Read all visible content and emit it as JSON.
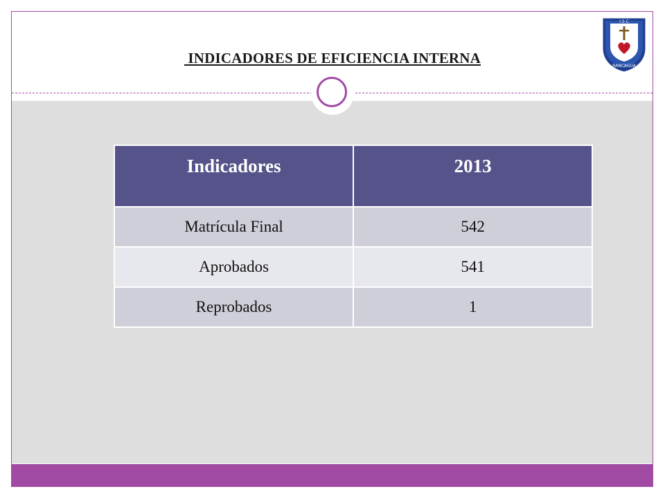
{
  "slide": {
    "title": " INDICADORES DE EFICIENCIA INTERNA",
    "logo": {
      "top_text": "I S C",
      "bottom_text": "RANCAGUA"
    }
  },
  "table": {
    "headers": [
      "Indicadores",
      "2013"
    ],
    "rows": [
      [
        "Matrícula Final",
        "542"
      ],
      [
        "Aprobados",
        "541"
      ],
      [
        "Reprobados",
        "1"
      ]
    ]
  },
  "colors": {
    "accent": "#a04aa3",
    "header_fill": "#55538a",
    "row_dark": "#cfcfda",
    "row_light": "#e7e7ee",
    "background": "#dedede"
  }
}
